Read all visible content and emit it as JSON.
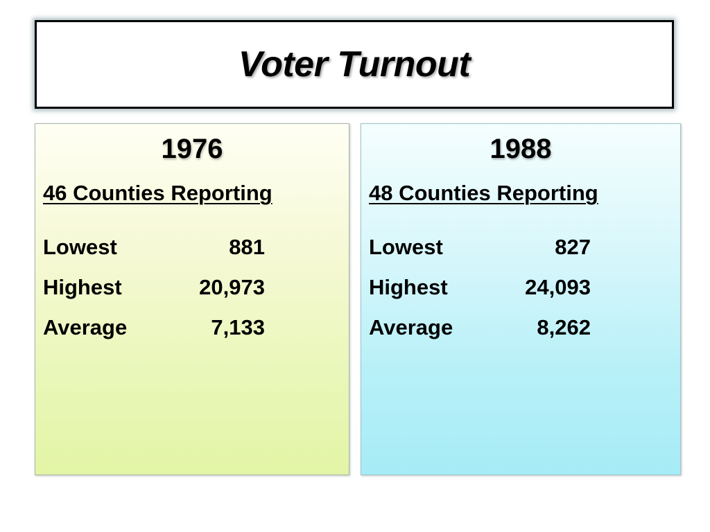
{
  "slide": {
    "title": "Voter Turnout"
  },
  "panels": [
    {
      "year": "1976",
      "subtitle": "46 Counties Reporting",
      "stats": [
        {
          "label": "Lowest",
          "value": "881"
        },
        {
          "label": "Highest",
          "value": "20,973"
        },
        {
          "label": "Average",
          "value": "7,133"
        }
      ],
      "color": "#e6f6ac"
    },
    {
      "year": "1988",
      "subtitle": "48 Counties Reporting",
      "stats": [
        {
          "label": "Lowest",
          "value": "827"
        },
        {
          "label": "Highest",
          "value": "24,093"
        },
        {
          "label": "Average",
          "value": "8,262"
        }
      ],
      "color": "#aaedf6"
    }
  ]
}
